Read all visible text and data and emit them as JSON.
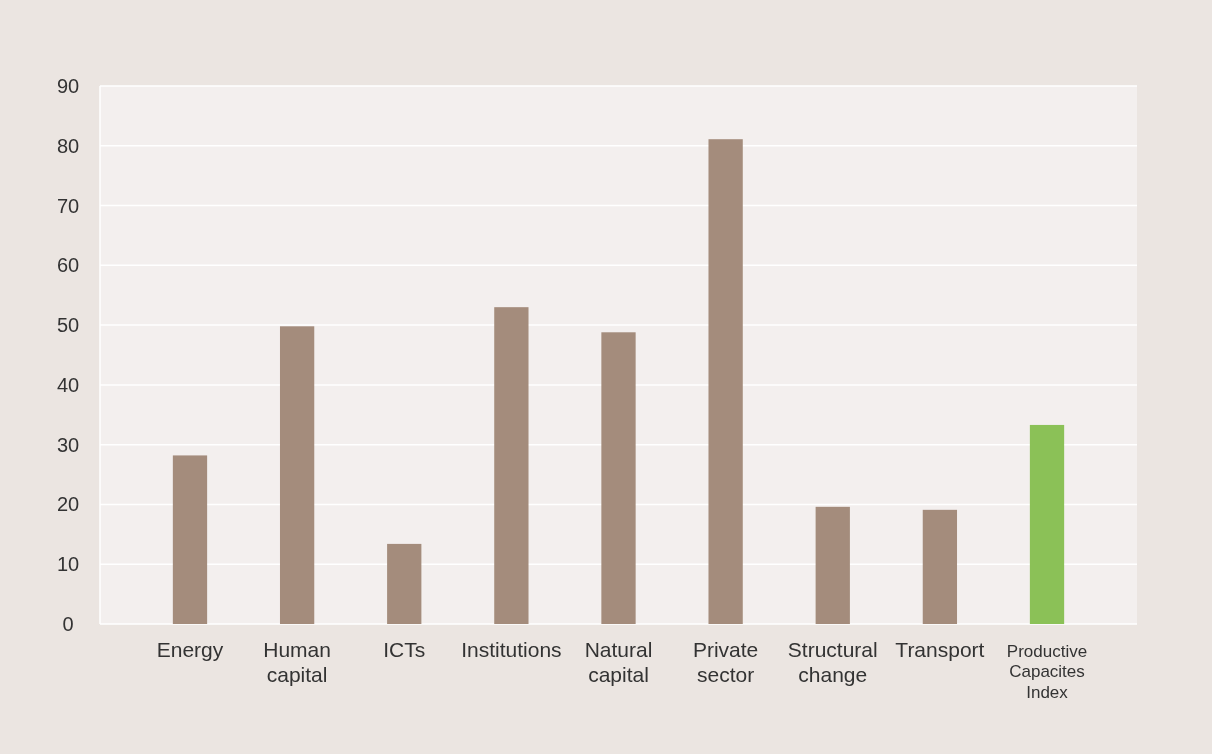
{
  "chart_data": {
    "type": "bar",
    "categories": [
      "Energy",
      "Human capital",
      "ICTs",
      "Institutions",
      "Natural capital",
      "Private sector",
      "Structural change",
      "Transport",
      "Productive Capacites Index"
    ],
    "values": [
      28.2,
      49.8,
      13.4,
      53,
      48.8,
      81.1,
      19.6,
      19.1,
      33.3
    ],
    "colors": [
      "#a48c7c",
      "#a48c7c",
      "#a48c7c",
      "#a48c7c",
      "#a48c7c",
      "#a48c7c",
      "#a48c7c",
      "#a48c7c",
      "#8bc157"
    ],
    "ylim": [
      0,
      90
    ],
    "yticks": [
      0,
      10,
      20,
      30,
      40,
      50,
      60,
      70,
      80,
      90
    ],
    "grid": "y"
  }
}
